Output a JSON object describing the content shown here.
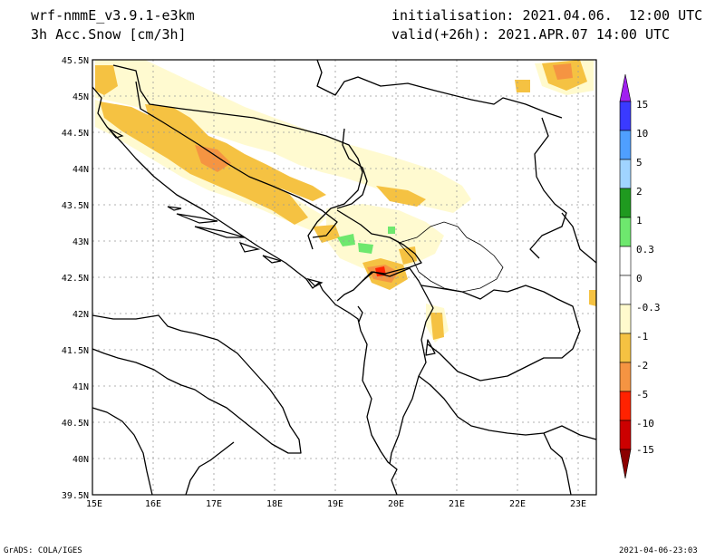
{
  "header": {
    "model": "wrf-nmmE_v3.9.1-e3km",
    "field": "3h Acc.Snow [cm/3h]",
    "initialisation": "initialisation: 2021.04.06.  12:00 UTC",
    "valid": "valid(+26h): 2021.APR.07 14:00 UTC"
  },
  "map": {
    "lat_labels": [
      "45.5N",
      "45N",
      "44.5N",
      "44N",
      "43.5N",
      "43N",
      "42.5N",
      "42N",
      "41.5N",
      "41N",
      "40.5N",
      "40N",
      "39.5N"
    ],
    "lon_labels": [
      "15E",
      "16E",
      "17E",
      "18E",
      "19E",
      "20E",
      "21E",
      "22E",
      "23E"
    ]
  },
  "legend": {
    "labels": [
      "15",
      "10",
      "5",
      "2",
      "1",
      "0.3",
      "0",
      "-0.3",
      "-1",
      "-2",
      "-5",
      "-10",
      "-15"
    ],
    "colors": [
      "#7f00ff",
      "#3a3aff",
      "#4f9fff",
      "#a0d4ff",
      "#1f9a1f",
      "#6ee86e",
      "#ffffff",
      "#fffacd",
      "#f5c242",
      "#f59442",
      "#ff2200",
      "#cc0000",
      "#8b0000"
    ]
  },
  "footer": {
    "left": "GrADS: COLA/IGES",
    "right": "2021-04-06-23:03"
  }
}
